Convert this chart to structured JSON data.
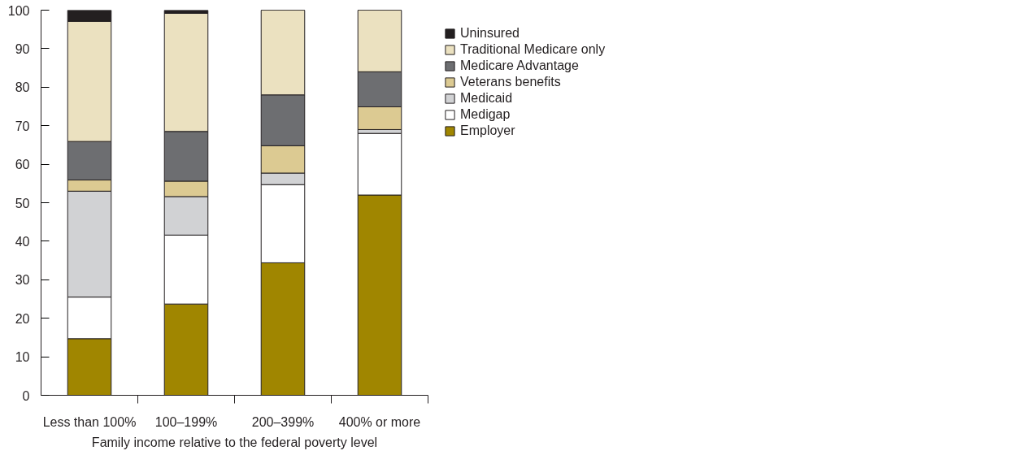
{
  "chart_data": {
    "type": "bar",
    "stacked": true,
    "xlabel": "Family income relative to the federal poverty level",
    "categories": [
      "Less than 100%",
      "100–199%",
      "200–399%",
      "400% or more"
    ],
    "series": [
      {
        "name": "Employer",
        "color": "#a08600",
        "values": [
          14.7,
          23.7,
          34.4,
          52.0
        ]
      },
      {
        "name": "Medigap",
        "color": "#ffffff",
        "values": [
          10.8,
          17.9,
          20.3,
          16.0
        ]
      },
      {
        "name": "Medicaid",
        "color": "#d1d2d4",
        "values": [
          27.5,
          10.0,
          3.0,
          1.0
        ]
      },
      {
        "name": "Veterans benefits",
        "color": "#dcca92",
        "values": [
          2.9,
          4.0,
          7.1,
          5.9
        ]
      },
      {
        "name": "Medicare Advantage",
        "color": "#6d6e71",
        "values": [
          10.0,
          12.9,
          13.2,
          9.1
        ]
      },
      {
        "name": "Traditional Medicare only",
        "color": "#ebe1c0",
        "values": [
          31.2,
          30.7,
          22.0,
          16.0
        ]
      },
      {
        "name": "Uninsured",
        "color": "#231f20",
        "values": [
          2.9,
          0.8,
          0,
          0
        ]
      }
    ],
    "ylim": [
      0,
      100
    ],
    "yticks": [
      0,
      10,
      20,
      30,
      40,
      50,
      60,
      70,
      80,
      90,
      100
    ],
    "grid": false,
    "legend": "top right"
  }
}
